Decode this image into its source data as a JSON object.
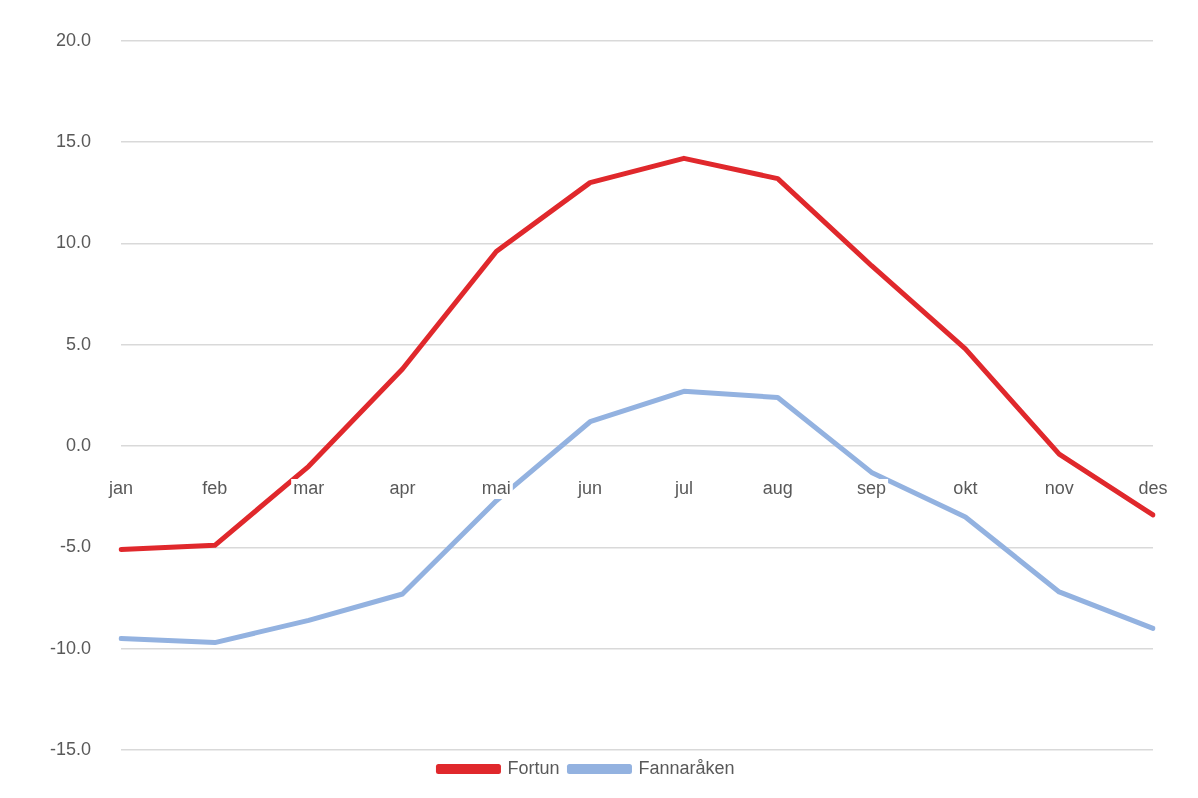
{
  "chart_data": {
    "type": "line",
    "categories": [
      "jan",
      "feb",
      "mar",
      "apr",
      "mai",
      "jun",
      "jul",
      "aug",
      "sep",
      "okt",
      "nov",
      "des"
    ],
    "series": [
      {
        "name": "Fortun",
        "color": "#e0282c",
        "values": [
          -5.1,
          -4.9,
          -1.0,
          3.8,
          9.6,
          13.0,
          14.2,
          13.2,
          8.9,
          4.8,
          -0.4,
          -3.4
        ]
      },
      {
        "name": "Fannaråken",
        "color": "#93b2e0",
        "values": [
          -9.5,
          -9.7,
          -8.6,
          -7.3,
          -2.7,
          1.2,
          2.7,
          2.4,
          -1.3,
          -3.5,
          -7.2,
          -9.0
        ]
      }
    ],
    "ylim": [
      -15,
      20
    ],
    "yticks": [
      {
        "value": -15,
        "label": "-15.0"
      },
      {
        "value": -10,
        "label": "-10.0"
      },
      {
        "value": -5,
        "label": "-5.0"
      },
      {
        "value": 0,
        "label": "0.0"
      },
      {
        "value": 5,
        "label": "5.0"
      },
      {
        "value": 10,
        "label": "10.0"
      },
      {
        "value": 15,
        "label": "15.0"
      },
      {
        "value": 20,
        "label": "20.0"
      }
    ],
    "grid": "y",
    "legend": "bottom",
    "marker": "none",
    "line_style": "solid"
  }
}
